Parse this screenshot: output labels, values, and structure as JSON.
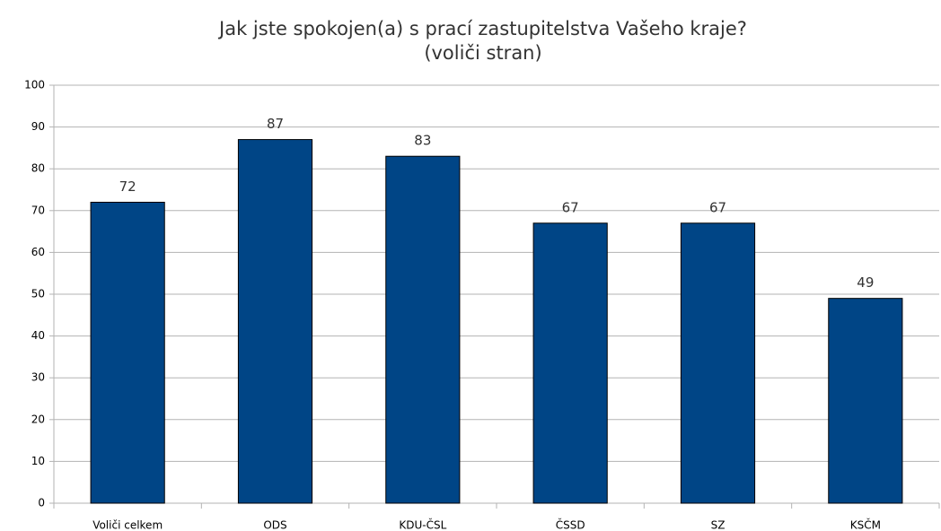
{
  "chart_data": {
    "type": "bar",
    "title": "Jak jste spokojen(a) s prací zastupitelstva Vašeho kraje?",
    "subtitle": "(voliči stran)",
    "categories": [
      "Voliči celkem",
      "ODS",
      "KDU-ČSL",
      "ČSSD",
      "SZ",
      "KSČM"
    ],
    "values": [
      72,
      87,
      83,
      67,
      67,
      49
    ],
    "color": "#004586",
    "ylim": [
      0,
      100
    ],
    "yticks": [
      0,
      10,
      20,
      30,
      40,
      50,
      60,
      70,
      80,
      90,
      100
    ],
    "grid": true
  }
}
